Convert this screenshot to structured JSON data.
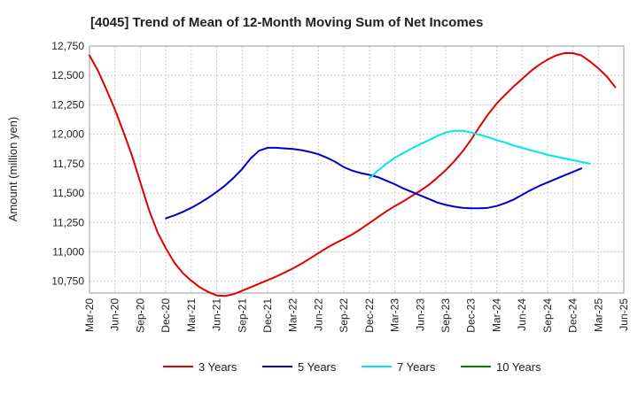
{
  "chart_data": {
    "type": "line",
    "title": "[4045]  Trend of Mean of 12-Month Moving Sum of Net Incomes",
    "xlabel": "",
    "ylabel": "Amount (million yen)",
    "ylim": [
      10650,
      12750
    ],
    "yticks": [
      10750,
      11000,
      11250,
      11500,
      11750,
      12000,
      12250,
      12500,
      12750
    ],
    "ytick_labels": [
      "10,750",
      "11,000",
      "11,250",
      "11,500",
      "11,750",
      "12,000",
      "12,250",
      "12,500",
      "12,750"
    ],
    "xticks": [
      "Mar-20",
      "Jun-20",
      "Sep-20",
      "Dec-20",
      "Mar-21",
      "Jun-21",
      "Sep-21",
      "Dec-21",
      "Mar-22",
      "Jun-22",
      "Sep-22",
      "Dec-22",
      "Mar-23",
      "Jun-23",
      "Sep-23",
      "Dec-23",
      "Mar-24",
      "Jun-24",
      "Sep-24",
      "Dec-24",
      "Mar-25",
      "Jun-25"
    ],
    "grid": true,
    "legend_position": "bottom",
    "series": [
      {
        "name": "3 Years",
        "color": "#e00000",
        "start_index": 0,
        "values": [
          12670,
          12540,
          12380,
          12210,
          12020,
          11820,
          11590,
          11360,
          11170,
          11030,
          10910,
          10820,
          10755,
          10700,
          10660,
          10630,
          10625,
          10640,
          10670,
          10700,
          10730,
          10760,
          10790,
          10825,
          10860,
          10900,
          10945,
          10990,
          11035,
          11075,
          11110,
          11150,
          11195,
          11245,
          11295,
          11345,
          11390,
          11430,
          11475,
          11520,
          11570,
          11630,
          11695,
          11770,
          11855,
          11955,
          12065,
          12170,
          12260,
          12335,
          12405,
          12470,
          12535,
          12590,
          12635,
          12670,
          12690,
          12690,
          12670,
          12620,
          12560,
          12490,
          12400
        ]
      },
      {
        "name": "5 Years",
        "color": "#0000c8",
        "start_index": 9,
        "values": [
          11285,
          11310,
          11340,
          11375,
          11415,
          11460,
          11510,
          11565,
          11630,
          11705,
          11795,
          11860,
          11885,
          11885,
          11880,
          11875,
          11865,
          11850,
          11830,
          11800,
          11765,
          11720,
          11690,
          11670,
          11655,
          11635,
          11605,
          11575,
          11540,
          11510,
          11480,
          11450,
          11420,
          11400,
          11385,
          11375,
          11370,
          11370,
          11375,
          11390,
          11415,
          11445,
          11485,
          11525,
          11560,
          11590,
          11620,
          11650,
          11680,
          11710
        ]
      },
      {
        "name": "7 Years",
        "color": "#00e6ee",
        "start_index": 33,
        "values": [
          11625,
          11690,
          11750,
          11800,
          11840,
          11880,
          11915,
          11950,
          11985,
          12015,
          12030,
          12030,
          12015,
          11995,
          11975,
          11950,
          11930,
          11905,
          11885,
          11865,
          11845,
          11825,
          11810,
          11795,
          11780,
          11765,
          11750
        ]
      },
      {
        "name": "10 Years",
        "color": "#008000",
        "start_index": 0,
        "values": []
      }
    ]
  }
}
